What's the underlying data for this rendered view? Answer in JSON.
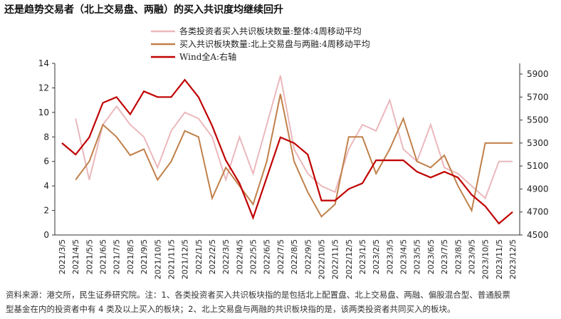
{
  "chart_data": {
    "type": "line",
    "title": "还是趋势交易者（北上交易盘、两融）的买入共识度均继续回升",
    "categories": [
      "2021/3/5",
      "2021/4/5",
      "2021/5/5",
      "2021/6/5",
      "2021/7/5",
      "2021/8/5",
      "2021/9/5",
      "2021/10/5",
      "2021/11/5",
      "2021/12/5",
      "2022/1/5",
      "2022/2/5",
      "2022/3/5",
      "2022/4/5",
      "2022/5/5",
      "2022/6/5",
      "2022/7/5",
      "2022/8/5",
      "2022/9/5",
      "2022/10/5",
      "2022/11/5",
      "2022/12/5",
      "2023/1/5",
      "2023/2/5",
      "2023/3/5",
      "2023/4/5",
      "2023/5/5",
      "2023/6/5",
      "2023/7/5",
      "2023/8/5",
      "2023/9/5",
      "2023/10/5",
      "2023/11/5",
      "2023/12/5"
    ],
    "series": [
      {
        "name": "各类投资者买入共识板块数量:整体:4周移动平均",
        "color": "#ebb8bc",
        "values": [
          null,
          9.5,
          4.5,
          9,
          10.5,
          9,
          8,
          5.5,
          8.5,
          10,
          9.5,
          8,
          4.5,
          8,
          5,
          9,
          13,
          7,
          5,
          4,
          3.5,
          7,
          9,
          8.5,
          11,
          7,
          6,
          9,
          5.5,
          5,
          4,
          3,
          6,
          6
        ]
      },
      {
        "name": "买入共识板块数量:北上交易盘与两融:4周移动平均",
        "color": "#c0804a",
        "values": [
          null,
          4.5,
          6,
          9,
          8,
          6.5,
          7,
          4.5,
          6,
          8.5,
          8,
          3,
          5.5,
          4,
          2.5,
          6,
          11.5,
          6,
          3.5,
          1.5,
          2.5,
          8,
          8,
          5,
          7,
          9.5,
          6,
          5.5,
          6.5,
          4,
          2,
          7.5,
          7.5,
          7.5
        ]
      },
      {
        "name": "Wind全A:右轴",
        "color": "#c00000",
        "axis": "y2",
        "values": [
          5300,
          5200,
          5350,
          5650,
          5700,
          5550,
          5750,
          5700,
          5700,
          5850,
          5700,
          5450,
          5150,
          4950,
          4650,
          5000,
          5350,
          5300,
          5200,
          4800,
          4800,
          4900,
          4950,
          5150,
          5150,
          5150,
          5050,
          5000,
          5050,
          5000,
          4850,
          4750,
          4600,
          4700
        ]
      }
    ],
    "ylim": [
      0,
      14
    ],
    "yticks": [
      0,
      2,
      4,
      6,
      8,
      10,
      12,
      14
    ],
    "y2lim": [
      4500,
      5993
    ],
    "y2ticks": [
      4500,
      4700,
      4900,
      5100,
      5300,
      5500,
      5700,
      5900
    ],
    "notes": [
      "资料来源：港交所，民生证券研究院。注：1、各类投资者买入共识板块指的是包括北上配置盘、北上交易盘、两融、偏股混合型、普通股票",
      "型基金在内的投资者中有 4 类及以上买入的板块；2、北上交易盘与两融的共识板块指的是，该两类投资者共同买入的板块。"
    ]
  }
}
